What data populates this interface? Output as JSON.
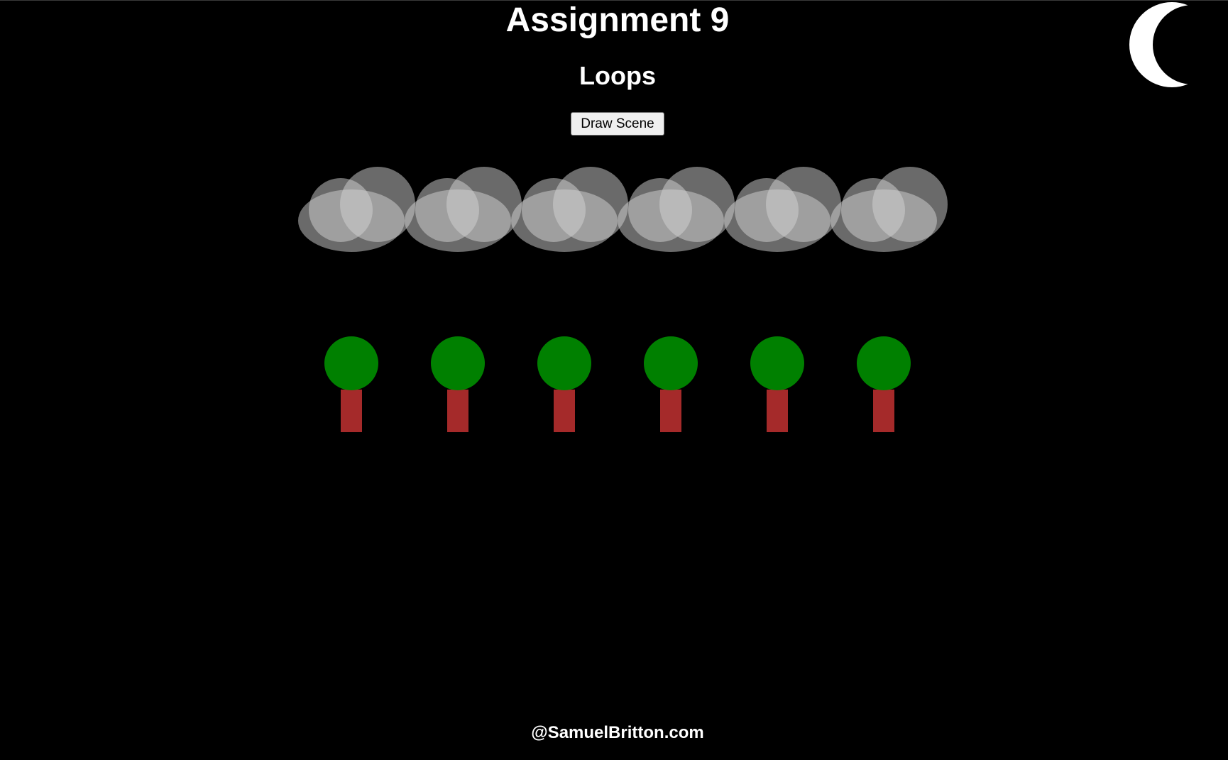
{
  "header": {
    "title": "Assignment 9",
    "subtitle": "Loops"
  },
  "controls": {
    "draw_button_label": "Draw Scene"
  },
  "scene": {
    "cloud_count": 6,
    "tree_count": 6,
    "colors": {
      "background": "#000000",
      "cloud": "#d3d3d3",
      "tree_canopy": "#008000",
      "tree_trunk": "#a52a2a",
      "moon": "#ffffff"
    }
  },
  "footer": {
    "credit": "@SamuelBritton.com"
  }
}
